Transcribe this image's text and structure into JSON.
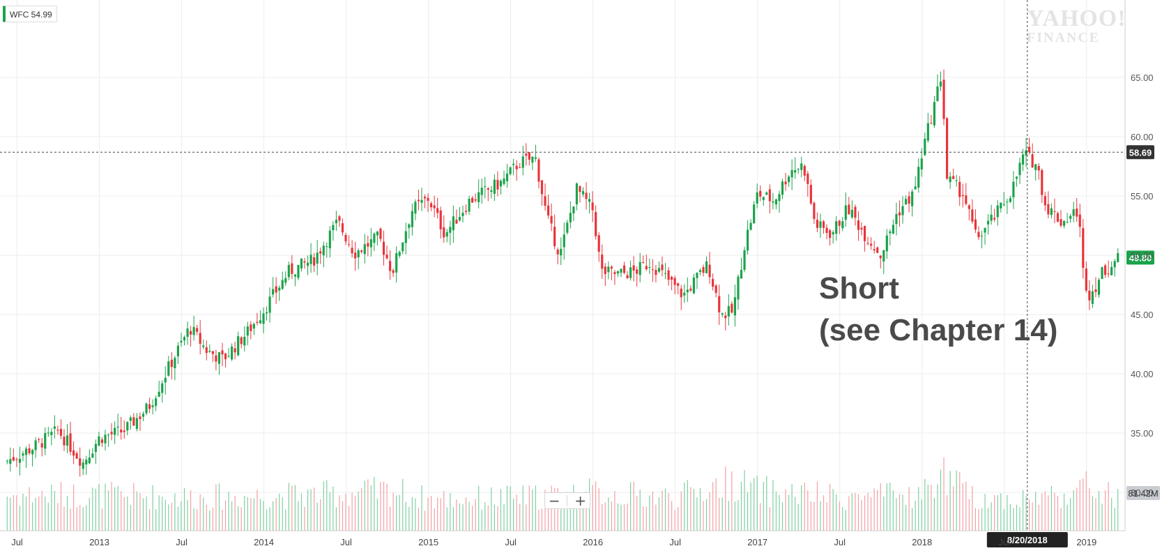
{
  "ticker": {
    "symbol": "WFC",
    "value": "54.99"
  },
  "watermark": {
    "line1": "YAHOO!",
    "line2": "FINANCE"
  },
  "annotation": {
    "line1": "Short",
    "line2": "(see Chapter 14)"
  },
  "zoom": {
    "minus": "−",
    "plus": "+"
  },
  "colors": {
    "up": "#1aa34a",
    "down": "#e8343a",
    "up_vol": "#7fcfa0",
    "down_vol": "#f3a0a3",
    "grid": "#ececec",
    "crosshair": "#444444"
  },
  "chart_data": {
    "type": "candlestick",
    "ylim": [
      28,
      68
    ],
    "y_ticks": [
      65,
      60,
      55,
      50,
      45,
      40,
      35,
      30
    ],
    "y_tick_labels": [
      "65.00",
      "60.00",
      "55.00",
      "50.00",
      "45.00",
      "40.00",
      "35.00",
      "30.00"
    ],
    "x_tick_labels": [
      {
        "label": "Jul",
        "t": 2012.5
      },
      {
        "label": "2013",
        "t": 2013.0
      },
      {
        "label": "Jul",
        "t": 2013.5
      },
      {
        "label": "2014",
        "t": 2014.0
      },
      {
        "label": "Jul",
        "t": 2014.5
      },
      {
        "label": "2015",
        "t": 2015.0
      },
      {
        "label": "Jul",
        "t": 2015.5
      },
      {
        "label": "2016",
        "t": 2016.0
      },
      {
        "label": "Jul",
        "t": 2016.5
      },
      {
        "label": "2017",
        "t": 2017.0
      },
      {
        "label": "Jul",
        "t": 2017.5
      },
      {
        "label": "2018",
        "t": 2018.0
      },
      {
        "label": "Jul",
        "t": 2018.5
      },
      {
        "label": "2019",
        "t": 2019.0
      }
    ],
    "time_range": [
      2012.43,
      2019.2
    ],
    "crosshair": {
      "price": 58.69,
      "price_label": "58.69",
      "date": "8/20/2018",
      "t": 2018.64
    },
    "last_price": {
      "value": 49.8,
      "label": "49.80"
    },
    "volume_label": "81.42M",
    "price_path": [
      [
        2012.43,
        32.6
      ],
      [
        2012.6,
        33.8
      ],
      [
        2012.75,
        35.2
      ],
      [
        2012.9,
        32.5
      ],
      [
        2013.0,
        34.6
      ],
      [
        2013.15,
        35.2
      ],
      [
        2013.3,
        37.2
      ],
      [
        2013.42,
        40.5
      ],
      [
        2013.55,
        43.9
      ],
      [
        2013.65,
        42.0
      ],
      [
        2013.75,
        41.2
      ],
      [
        2013.9,
        43.5
      ],
      [
        2014.0,
        45.4
      ],
      [
        2014.15,
        48.6
      ],
      [
        2014.3,
        49.6
      ],
      [
        2014.45,
        52.8
      ],
      [
        2014.55,
        50.2
      ],
      [
        2014.7,
        51.5
      ],
      [
        2014.78,
        48.6
      ],
      [
        2014.9,
        53.8
      ],
      [
        2015.0,
        54.8
      ],
      [
        2015.1,
        51.8
      ],
      [
        2015.25,
        54.6
      ],
      [
        2015.35,
        55.4
      ],
      [
        2015.45,
        56.2
      ],
      [
        2015.55,
        57.8
      ],
      [
        2015.65,
        58.2
      ],
      [
        2015.72,
        53.2
      ],
      [
        2015.8,
        50.0
      ],
      [
        2015.9,
        55.6
      ],
      [
        2016.0,
        53.8
      ],
      [
        2016.05,
        48.6
      ],
      [
        2016.15,
        48.4
      ],
      [
        2016.25,
        48.6
      ],
      [
        2016.35,
        49.4
      ],
      [
        2016.45,
        48.0
      ],
      [
        2016.55,
        46.6
      ],
      [
        2016.65,
        48.4
      ],
      [
        2016.7,
        49.2
      ],
      [
        2016.78,
        45.0
      ],
      [
        2016.85,
        45.2
      ],
      [
        2016.92,
        50.8
      ],
      [
        2017.0,
        55.2
      ],
      [
        2017.1,
        54.6
      ],
      [
        2017.2,
        57.2
      ],
      [
        2017.28,
        57.6
      ],
      [
        2017.35,
        52.6
      ],
      [
        2017.45,
        51.8
      ],
      [
        2017.55,
        54.0
      ],
      [
        2017.65,
        51.8
      ],
      [
        2017.75,
        50.0
      ],
      [
        2017.85,
        53.6
      ],
      [
        2017.95,
        55.2
      ],
      [
        2018.0,
        58.6
      ],
      [
        2018.08,
        63.0
      ],
      [
        2018.12,
        65.4
      ],
      [
        2018.15,
        56.5
      ],
      [
        2018.25,
        55.2
      ],
      [
        2018.33,
        51.4
      ],
      [
        2018.45,
        53.4
      ],
      [
        2018.55,
        55.6
      ],
      [
        2018.62,
        58.6
      ],
      [
        2018.7,
        57.6
      ],
      [
        2018.75,
        54.2
      ],
      [
        2018.85,
        52.8
      ],
      [
        2018.95,
        53.8
      ],
      [
        2018.98,
        48.4
      ],
      [
        2019.02,
        46.6
      ],
      [
        2019.1,
        48.6
      ],
      [
        2019.2,
        49.8
      ]
    ],
    "volume_path": [
      [
        2012.43,
        16
      ],
      [
        2013.0,
        16
      ],
      [
        2013.6,
        15
      ],
      [
        2014.3,
        16
      ],
      [
        2014.8,
        18
      ],
      [
        2015.0,
        14
      ],
      [
        2015.6,
        15
      ],
      [
        2016.0,
        17
      ],
      [
        2016.5,
        15
      ],
      [
        2016.85,
        22
      ],
      [
        2017.0,
        18
      ],
      [
        2017.5,
        15
      ],
      [
        2018.0,
        16
      ],
      [
        2018.12,
        26
      ],
      [
        2018.3,
        15
      ],
      [
        2018.6,
        14
      ],
      [
        2018.9,
        17
      ],
      [
        2019.0,
        20
      ],
      [
        2019.2,
        14
      ]
    ]
  }
}
